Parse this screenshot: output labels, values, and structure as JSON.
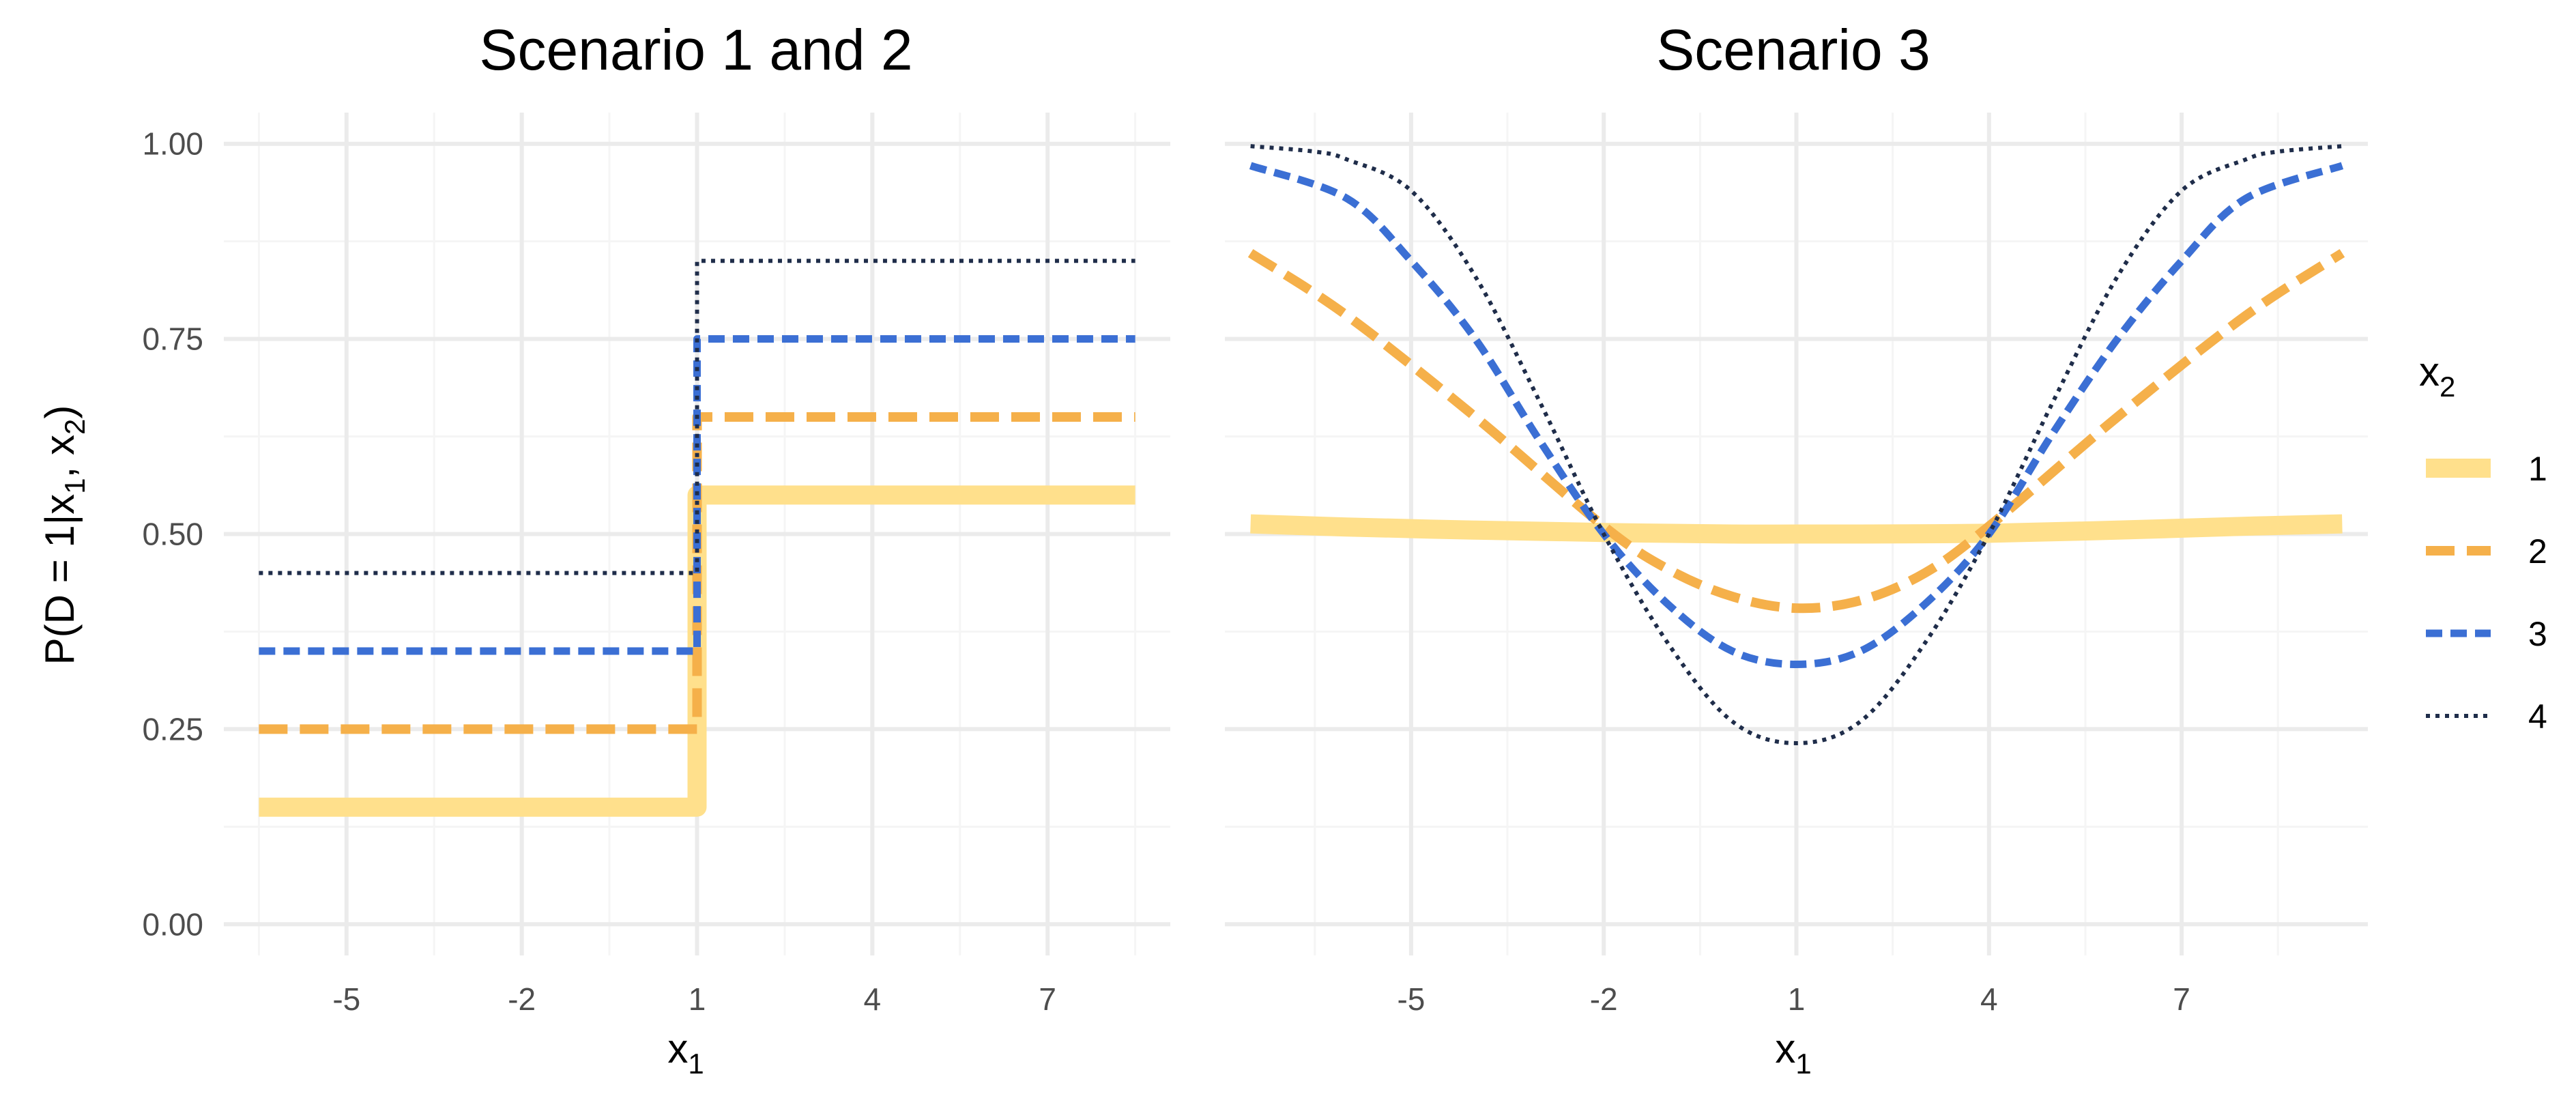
{
  "chart_data": [
    {
      "type": "line",
      "title": "Scenario 1 and 2",
      "xlabel": "x",
      "xlabel_sub": "1",
      "ylabel": "P(D = 1|x",
      "ylabel_sub1": "1",
      "ylabel_mid": ", x",
      "ylabel_sub2": "2",
      "ylabel_end": ")",
      "xlim": [
        -7.1,
        9.1
      ],
      "ylim": [
        -0.04,
        1.04
      ],
      "xticks": [
        -5,
        -2,
        1,
        4,
        7
      ],
      "xtick_labels": [
        "-5",
        "-2",
        "1",
        "4",
        "7"
      ],
      "yticks": [
        0,
        0.25,
        0.5,
        0.75,
        1
      ],
      "ytick_labels": [
        "0.00",
        "0.25",
        "0.50",
        "0.75",
        "1.00"
      ],
      "grid": true,
      "series": [
        {
          "name": "1",
          "x": [
            -6.5,
            1,
            1,
            8.5
          ],
          "y": [
            0.15,
            0.15,
            0.55,
            0.55
          ]
        },
        {
          "name": "2",
          "x": [
            -6.5,
            1,
            1,
            8.5
          ],
          "y": [
            0.25,
            0.25,
            0.65,
            0.65
          ]
        },
        {
          "name": "3",
          "x": [
            -6.5,
            1,
            1,
            8.5
          ],
          "y": [
            0.35,
            0.35,
            0.75,
            0.75
          ]
        },
        {
          "name": "4",
          "x": [
            -6.5,
            1,
            1,
            8.5
          ],
          "y": [
            0.45,
            0.45,
            0.85,
            0.85
          ]
        }
      ]
    },
    {
      "type": "line",
      "title": "Scenario 3",
      "xlabel": "x",
      "xlabel_sub": "1",
      "xlim": [
        -7.9,
        9.9
      ],
      "ylim": [
        -0.04,
        1.04
      ],
      "xticks": [
        -5,
        -2,
        1,
        4,
        7
      ],
      "xtick_labels": [
        "-5",
        "-2",
        "1",
        "4",
        "7"
      ],
      "yticks": [
        0,
        0.25,
        0.5,
        0.75,
        1
      ],
      "grid": true,
      "series": [
        {
          "name": "1",
          "x": [
            -7.5,
            -6,
            -4,
            -2,
            0,
            1,
            2,
            4,
            6,
            8,
            9.5
          ],
          "y": [
            0.513,
            0.509,
            0.505,
            0.502,
            0.5,
            0.5,
            0.5,
            0.501,
            0.505,
            0.51,
            0.513
          ]
        },
        {
          "name": "2",
          "x": [
            -7.5,
            -6,
            -4,
            -2,
            -1,
            0,
            1,
            2,
            3,
            4,
            6,
            8,
            9.5
          ],
          "y": [
            0.86,
            0.78,
            0.65,
            0.51,
            0.455,
            0.42,
            0.405,
            0.415,
            0.45,
            0.51,
            0.65,
            0.78,
            0.86
          ]
        },
        {
          "name": "3",
          "x": [
            -7.5,
            -6,
            -5,
            -4,
            -3,
            -2,
            -1,
            0,
            1,
            2,
            3,
            4,
            5,
            6,
            7,
            8,
            9.5
          ],
          "y": [
            0.972,
            0.93,
            0.85,
            0.75,
            0.62,
            0.5,
            0.41,
            0.35,
            0.333,
            0.35,
            0.41,
            0.5,
            0.63,
            0.75,
            0.85,
            0.93,
            0.972
          ]
        },
        {
          "name": "4",
          "x": [
            -7.5,
            -6.5,
            -6,
            -5,
            -4,
            -3,
            -2,
            -1,
            0,
            1,
            2,
            3,
            4,
            5,
            6,
            7,
            8,
            8.5,
            9.5
          ],
          "y": [
            0.997,
            0.99,
            0.98,
            0.94,
            0.83,
            0.67,
            0.5,
            0.36,
            0.26,
            0.232,
            0.26,
            0.36,
            0.5,
            0.67,
            0.83,
            0.94,
            0.98,
            0.99,
            0.997
          ]
        }
      ]
    }
  ],
  "legend": {
    "title": "x",
    "title_sub": "2",
    "placement": "right",
    "items": [
      {
        "label": "1",
        "color": "#FFE08C",
        "style": "solid"
      },
      {
        "label": "2",
        "color": "#F5B04A",
        "style": "dashed"
      },
      {
        "label": "3",
        "color": "#3B6FD4",
        "style": "short-dashed"
      },
      {
        "label": "4",
        "color": "#1F2D4A",
        "style": "dotted"
      }
    ]
  },
  "colors": {
    "grid_major": "#EBEBEB",
    "grid_minor": "#F5F5F5"
  }
}
